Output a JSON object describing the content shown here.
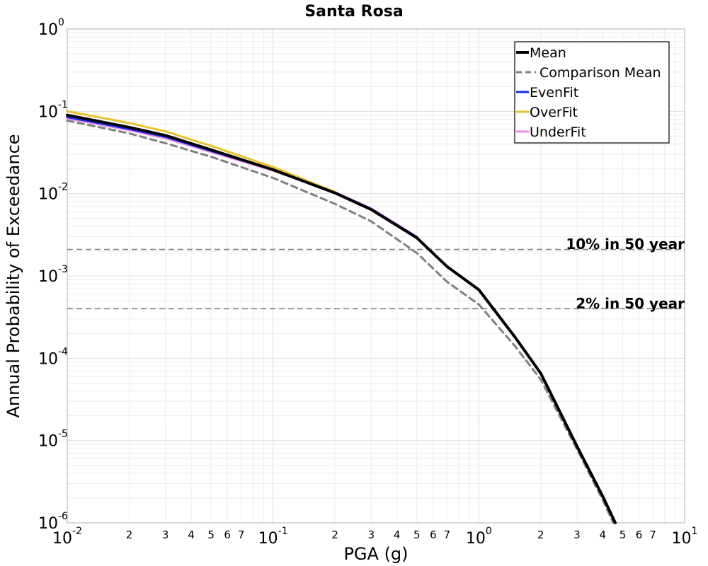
{
  "chart_data": {
    "type": "line",
    "title": "Santa Rosa",
    "xlabel": "PGA (g)",
    "ylabel": "Annual Probability of Exceedance",
    "x_scale": "log",
    "y_scale": "log",
    "xlim": [
      0.01,
      10
    ],
    "ylim": [
      1e-06,
      1
    ],
    "grid": true,
    "legend_position": "top-right",
    "x_major_ticks": [
      {
        "value": 0.01,
        "base": "10",
        "exp": "-2"
      },
      {
        "value": 0.1,
        "base": "10",
        "exp": "-1"
      },
      {
        "value": 1,
        "base": "10",
        "exp": "0"
      },
      {
        "value": 10,
        "base": "10",
        "exp": "1"
      }
    ],
    "x_minor_tick_labels": [
      "2",
      "3",
      "4",
      "5",
      "6",
      "7"
    ],
    "y_major_ticks": [
      {
        "value": 1,
        "base": "10",
        "exp": "0"
      },
      {
        "value": 0.1,
        "base": "10",
        "exp": "-1"
      },
      {
        "value": 0.01,
        "base": "10",
        "exp": "-2"
      },
      {
        "value": 0.001,
        "base": "10",
        "exp": "-3"
      },
      {
        "value": 0.0001,
        "base": "10",
        "exp": "-4"
      },
      {
        "value": 1e-05,
        "base": "10",
        "exp": "-5"
      },
      {
        "value": 1e-06,
        "base": "10",
        "exp": "-6"
      }
    ],
    "series": [
      {
        "name": "Mean",
        "color": "#000000",
        "style": "solid",
        "x": [
          0.01,
          0.02,
          0.03,
          0.05,
          0.1,
          0.2,
          0.3,
          0.5,
          0.7,
          1,
          1.5,
          2,
          3,
          4,
          4.6
        ],
        "y": [
          0.09,
          0.064,
          0.051,
          0.034,
          0.0195,
          0.0102,
          0.0064,
          0.0029,
          0.0013,
          0.00068,
          0.00018,
          6.55e-05,
          8.5e-06,
          2.1e-06,
          1e-06
        ]
      },
      {
        "name": "Comparison Mean",
        "color": "#808080",
        "style": "dashed",
        "x": [
          0.01,
          0.02,
          0.03,
          0.05,
          0.1,
          0.2,
          0.3,
          0.5,
          0.7,
          1,
          1.5,
          2,
          3,
          4,
          4.5
        ],
        "y": [
          0.077,
          0.054,
          0.041,
          0.028,
          0.0155,
          0.0075,
          0.0046,
          0.0019,
          0.00085,
          0.00045,
          0.00014,
          5.5e-05,
          7.8e-06,
          1.9e-06,
          1e-06
        ]
      },
      {
        "name": "EvenFit",
        "color": "#1133ee",
        "style": "solid",
        "x": [
          0.01,
          0.02,
          0.03,
          0.05,
          0.1,
          0.2,
          0.3,
          0.5
        ],
        "y": [
          0.085,
          0.061,
          0.049,
          0.033,
          0.0195,
          0.0103,
          0.0065,
          0.00295
        ]
      },
      {
        "name": "OverFit",
        "color": "#e8c22a",
        "style": "solid",
        "x": [
          0.01,
          0.02,
          0.03,
          0.05,
          0.1,
          0.2
        ],
        "y": [
          0.1,
          0.072,
          0.057,
          0.038,
          0.021,
          0.0105
        ]
      },
      {
        "name": "UnderFit",
        "color": "#f08de8",
        "style": "solid",
        "x": [
          0.01,
          0.02,
          0.03,
          0.05,
          0.1,
          0.2,
          0.3,
          0.5
        ],
        "y": [
          0.082,
          0.059,
          0.047,
          0.032,
          0.019,
          0.0104,
          0.0066,
          0.003
        ]
      }
    ],
    "reference_lines": [
      {
        "label": "10% in 50 year",
        "y": 0.0021
      },
      {
        "label": "2% in 50 year",
        "y": 0.0004
      }
    ]
  }
}
